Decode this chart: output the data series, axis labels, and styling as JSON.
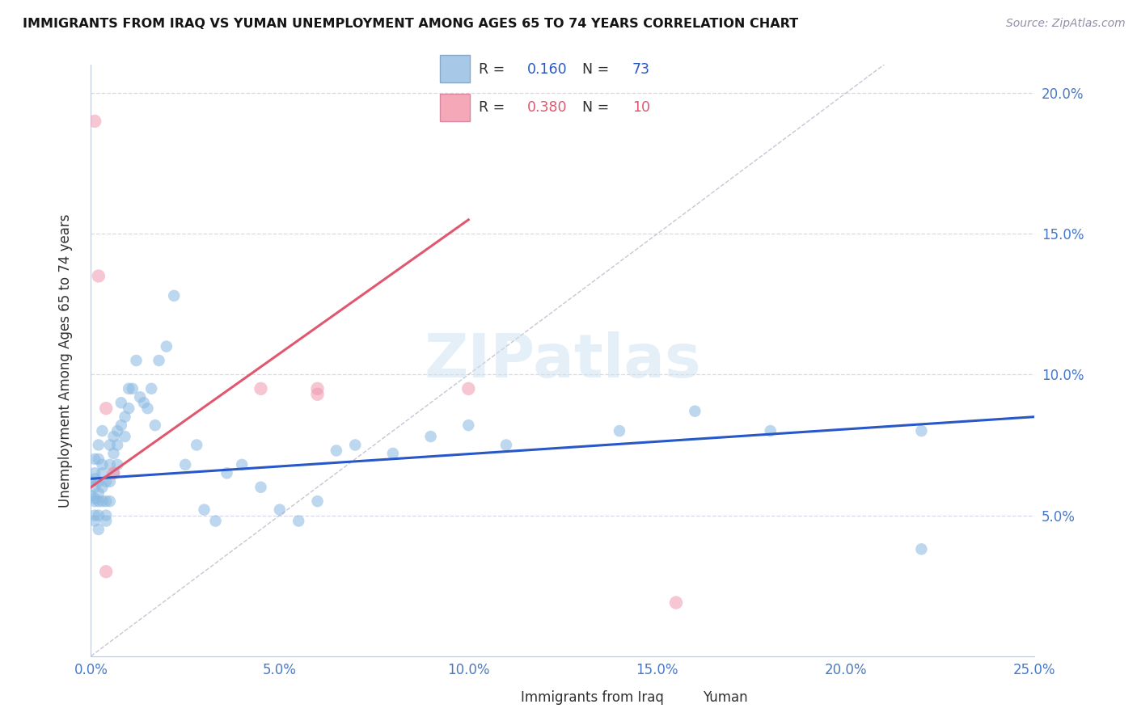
{
  "title": "IMMIGRANTS FROM IRAQ VS YUMAN UNEMPLOYMENT AMONG AGES 65 TO 74 YEARS CORRELATION CHART",
  "source": "Source: ZipAtlas.com",
  "ylabel": "Unemployment Among Ages 65 to 74 years",
  "xlim": [
    0,
    0.25
  ],
  "ylim": [
    0,
    0.21
  ],
  "xticks": [
    0.0,
    0.05,
    0.1,
    0.15,
    0.2,
    0.25
  ],
  "yticks": [
    0.05,
    0.1,
    0.15,
    0.2
  ],
  "blue_color": "#88b8e0",
  "pink_color": "#f098b0",
  "blue_line_color": "#2858c8",
  "pink_line_color": "#e05870",
  "diag_color": "#c0c0d0",
  "grid_color": "#d8d8e8",
  "blue_x": [
    0.0,
    0.0,
    0.001,
    0.001,
    0.001,
    0.001,
    0.001,
    0.001,
    0.001,
    0.001,
    0.002,
    0.002,
    0.002,
    0.002,
    0.002,
    0.002,
    0.002,
    0.003,
    0.003,
    0.003,
    0.003,
    0.003,
    0.004,
    0.004,
    0.004,
    0.004,
    0.005,
    0.005,
    0.005,
    0.005,
    0.006,
    0.006,
    0.006,
    0.007,
    0.007,
    0.007,
    0.008,
    0.008,
    0.009,
    0.009,
    0.01,
    0.01,
    0.011,
    0.012,
    0.013,
    0.014,
    0.015,
    0.016,
    0.017,
    0.018,
    0.02,
    0.022,
    0.025,
    0.028,
    0.03,
    0.033,
    0.036,
    0.04,
    0.045,
    0.05,
    0.055,
    0.06,
    0.065,
    0.07,
    0.08,
    0.09,
    0.1,
    0.11,
    0.14,
    0.16,
    0.18,
    0.22,
    0.22
  ],
  "blue_y": [
    0.062,
    0.057,
    0.06,
    0.055,
    0.05,
    0.063,
    0.056,
    0.048,
    0.07,
    0.065,
    0.062,
    0.058,
    0.055,
    0.05,
    0.045,
    0.07,
    0.075,
    0.065,
    0.06,
    0.055,
    0.068,
    0.08,
    0.062,
    0.055,
    0.05,
    0.048,
    0.075,
    0.068,
    0.062,
    0.055,
    0.078,
    0.072,
    0.065,
    0.08,
    0.075,
    0.068,
    0.09,
    0.082,
    0.085,
    0.078,
    0.095,
    0.088,
    0.095,
    0.105,
    0.092,
    0.09,
    0.088,
    0.095,
    0.082,
    0.105,
    0.11,
    0.128,
    0.068,
    0.075,
    0.052,
    0.048,
    0.065,
    0.068,
    0.06,
    0.052,
    0.048,
    0.055,
    0.073,
    0.075,
    0.072,
    0.078,
    0.082,
    0.075,
    0.08,
    0.087,
    0.08,
    0.038,
    0.08
  ],
  "pink_x": [
    0.001,
    0.002,
    0.004,
    0.004,
    0.006,
    0.045,
    0.06,
    0.06,
    0.1,
    0.155
  ],
  "pink_y": [
    0.19,
    0.135,
    0.088,
    0.03,
    0.065,
    0.095,
    0.093,
    0.095,
    0.095,
    0.019
  ],
  "blue_trend_x": [
    0.0,
    0.25
  ],
  "blue_trend_y": [
    0.063,
    0.085
  ],
  "pink_trend_x": [
    0.0,
    0.1
  ],
  "pink_trend_y": [
    0.06,
    0.155
  ]
}
